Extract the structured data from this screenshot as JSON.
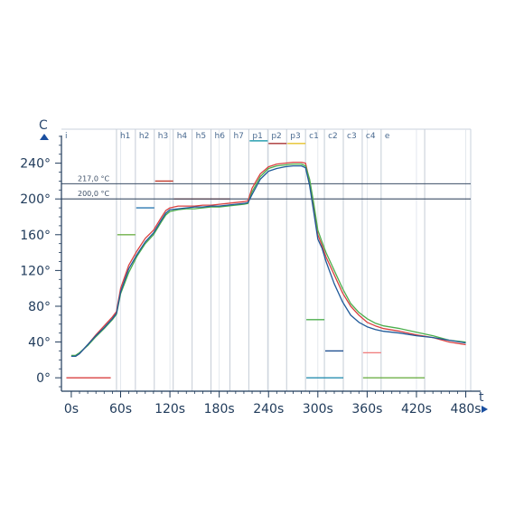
{
  "chart_data": {
    "type": "line",
    "xlabel": "t",
    "ylabel": "C",
    "xlim": [
      -12,
      486
    ],
    "ylim": [
      -15,
      278
    ],
    "x_ticks": [
      {
        "value": 0,
        "label": "0s"
      },
      {
        "value": 60,
        "label": "60s"
      },
      {
        "value": 120,
        "label": "120s"
      },
      {
        "value": 180,
        "label": "180s"
      },
      {
        "value": 240,
        "label": "240s"
      },
      {
        "value": 300,
        "label": "300s"
      },
      {
        "value": 360,
        "label": "360s"
      },
      {
        "value": 420,
        "label": "420s"
      },
      {
        "value": 480,
        "label": "480s"
      }
    ],
    "y_ticks": [
      {
        "value": 0,
        "label": "0°"
      },
      {
        "value": 40,
        "label": "40°"
      },
      {
        "value": 80,
        "label": "80°"
      },
      {
        "value": 120,
        "label": "120°"
      },
      {
        "value": 160,
        "label": "160°"
      },
      {
        "value": 200,
        "label": "200°"
      },
      {
        "value": 240,
        "label": "240°"
      }
    ],
    "reference_lines": [
      {
        "value": 217,
        "label": "217,0 °C"
      },
      {
        "value": 200,
        "label": "200,0 °C"
      }
    ],
    "zones": [
      {
        "label": "i",
        "start": -12
      },
      {
        "label": "h1",
        "start": 55
      },
      {
        "label": "h2",
        "start": 78
      },
      {
        "label": "h3",
        "start": 101
      },
      {
        "label": "h4",
        "start": 124
      },
      {
        "label": "h5",
        "start": 147
      },
      {
        "label": "h6",
        "start": 170
      },
      {
        "label": "h7",
        "start": 193
      },
      {
        "label": "p1",
        "start": 216
      },
      {
        "label": "p2",
        "start": 239
      },
      {
        "label": "p3",
        "start": 262
      },
      {
        "label": "c1",
        "start": 285
      },
      {
        "label": "c2",
        "start": 308
      },
      {
        "label": "c3",
        "start": 331
      },
      {
        "label": "c4",
        "start": 354
      },
      {
        "label": "e",
        "start": 377
      }
    ],
    "zone_boundaries": [
      55,
      78,
      101,
      124,
      147,
      170,
      193,
      216,
      239,
      262,
      285,
      308,
      331,
      354,
      377,
      430
    ],
    "setpoints": [
      {
        "x": [
          -6,
          48
        ],
        "y": 0,
        "color": "#d94040"
      },
      {
        "x": [
          56,
          78
        ],
        "y": 160,
        "color": "#6fb04a"
      },
      {
        "x": [
          79,
          101
        ],
        "y": 190,
        "color": "#2a78b0"
      },
      {
        "x": [
          102,
          124
        ],
        "y": 220,
        "color": "#c0392b"
      },
      {
        "x": [
          125,
          193
        ],
        "y": 200,
        "color": "#c0392b"
      },
      {
        "x": [
          217,
          239
        ],
        "y": 265,
        "color": "#2a9fb0"
      },
      {
        "x": [
          240,
          262
        ],
        "y": 262,
        "color": "#a83232"
      },
      {
        "x": [
          263,
          285
        ],
        "y": 262,
        "color": "#e6c229"
      },
      {
        "x": [
          286,
          308
        ],
        "y": 65,
        "color": "#4cae4c"
      },
      {
        "x": [
          309,
          331
        ],
        "y": 30,
        "color": "#1f4f8f"
      },
      {
        "x": [
          286,
          331
        ],
        "y": 0,
        "color": "#2a8fb0"
      },
      {
        "x": [
          355,
          377
        ],
        "y": 28,
        "color": "#f08080"
      },
      {
        "x": [
          355,
          430
        ],
        "y": 0,
        "color": "#6fb04a"
      }
    ],
    "series": [
      {
        "color": "#d94040",
        "x": [
          0,
          5,
          10,
          20,
          30,
          40,
          50,
          55,
          60,
          70,
          80,
          90,
          100,
          110,
          115,
          120,
          130,
          140,
          150,
          160,
          170,
          180,
          190,
          200,
          210,
          215,
          220,
          230,
          240,
          250,
          260,
          270,
          280,
          285,
          290,
          295,
          300,
          305,
          310,
          320,
          330,
          340,
          350,
          360,
          370,
          380,
          400,
          420,
          440,
          460,
          480
        ],
        "y": [
          24,
          24,
          27,
          37,
          48,
          58,
          68,
          74,
          100,
          126,
          142,
          156,
          165,
          180,
          187,
          190,
          192,
          192,
          192,
          193,
          193,
          194,
          195,
          196,
          197,
          198,
          212,
          228,
          236,
          239,
          240,
          241,
          241,
          240,
          220,
          190,
          160,
          148,
          135,
          115,
          95,
          80,
          70,
          62,
          58,
          55,
          52,
          48,
          45,
          40,
          37
        ]
      },
      {
        "color": "#4cae4c",
        "x": [
          0,
          5,
          10,
          20,
          30,
          40,
          50,
          55,
          60,
          70,
          80,
          90,
          100,
          110,
          115,
          120,
          130,
          140,
          150,
          160,
          170,
          180,
          190,
          200,
          210,
          215,
          220,
          230,
          240,
          250,
          260,
          270,
          280,
          285,
          290,
          295,
          300,
          305,
          310,
          320,
          330,
          340,
          350,
          360,
          370,
          380,
          400,
          420,
          440,
          460,
          480
        ],
        "y": [
          25,
          25,
          28,
          36,
          46,
          55,
          65,
          71,
          94,
          118,
          136,
          150,
          160,
          175,
          182,
          186,
          188,
          189,
          189,
          190,
          191,
          191,
          192,
          193,
          194,
          195,
          208,
          225,
          234,
          237,
          238,
          239,
          239,
          237,
          222,
          195,
          165,
          152,
          140,
          120,
          100,
          83,
          73,
          66,
          61,
          58,
          55,
          51,
          47,
          42,
          40
        ]
      },
      {
        "color": "#1f5a99",
        "x": [
          0,
          5,
          10,
          20,
          30,
          40,
          50,
          55,
          60,
          70,
          80,
          90,
          100,
          110,
          115,
          120,
          130,
          140,
          150,
          160,
          170,
          180,
          190,
          200,
          210,
          215,
          220,
          230,
          240,
          250,
          260,
          270,
          280,
          285,
          290,
          295,
          300,
          305,
          310,
          320,
          330,
          340,
          350,
          360,
          370,
          380,
          400,
          420,
          440,
          460,
          480
        ],
        "y": [
          24,
          24,
          27,
          37,
          47,
          56,
          66,
          72,
          96,
          122,
          138,
          152,
          162,
          177,
          184,
          188,
          189,
          190,
          191,
          191,
          192,
          192,
          193,
          194,
          195,
          196,
          205,
          222,
          231,
          234,
          236,
          237,
          237,
          235,
          215,
          185,
          155,
          145,
          130,
          105,
          85,
          70,
          62,
          57,
          54,
          52,
          50,
          47,
          45,
          42,
          39
        ]
      }
    ]
  }
}
